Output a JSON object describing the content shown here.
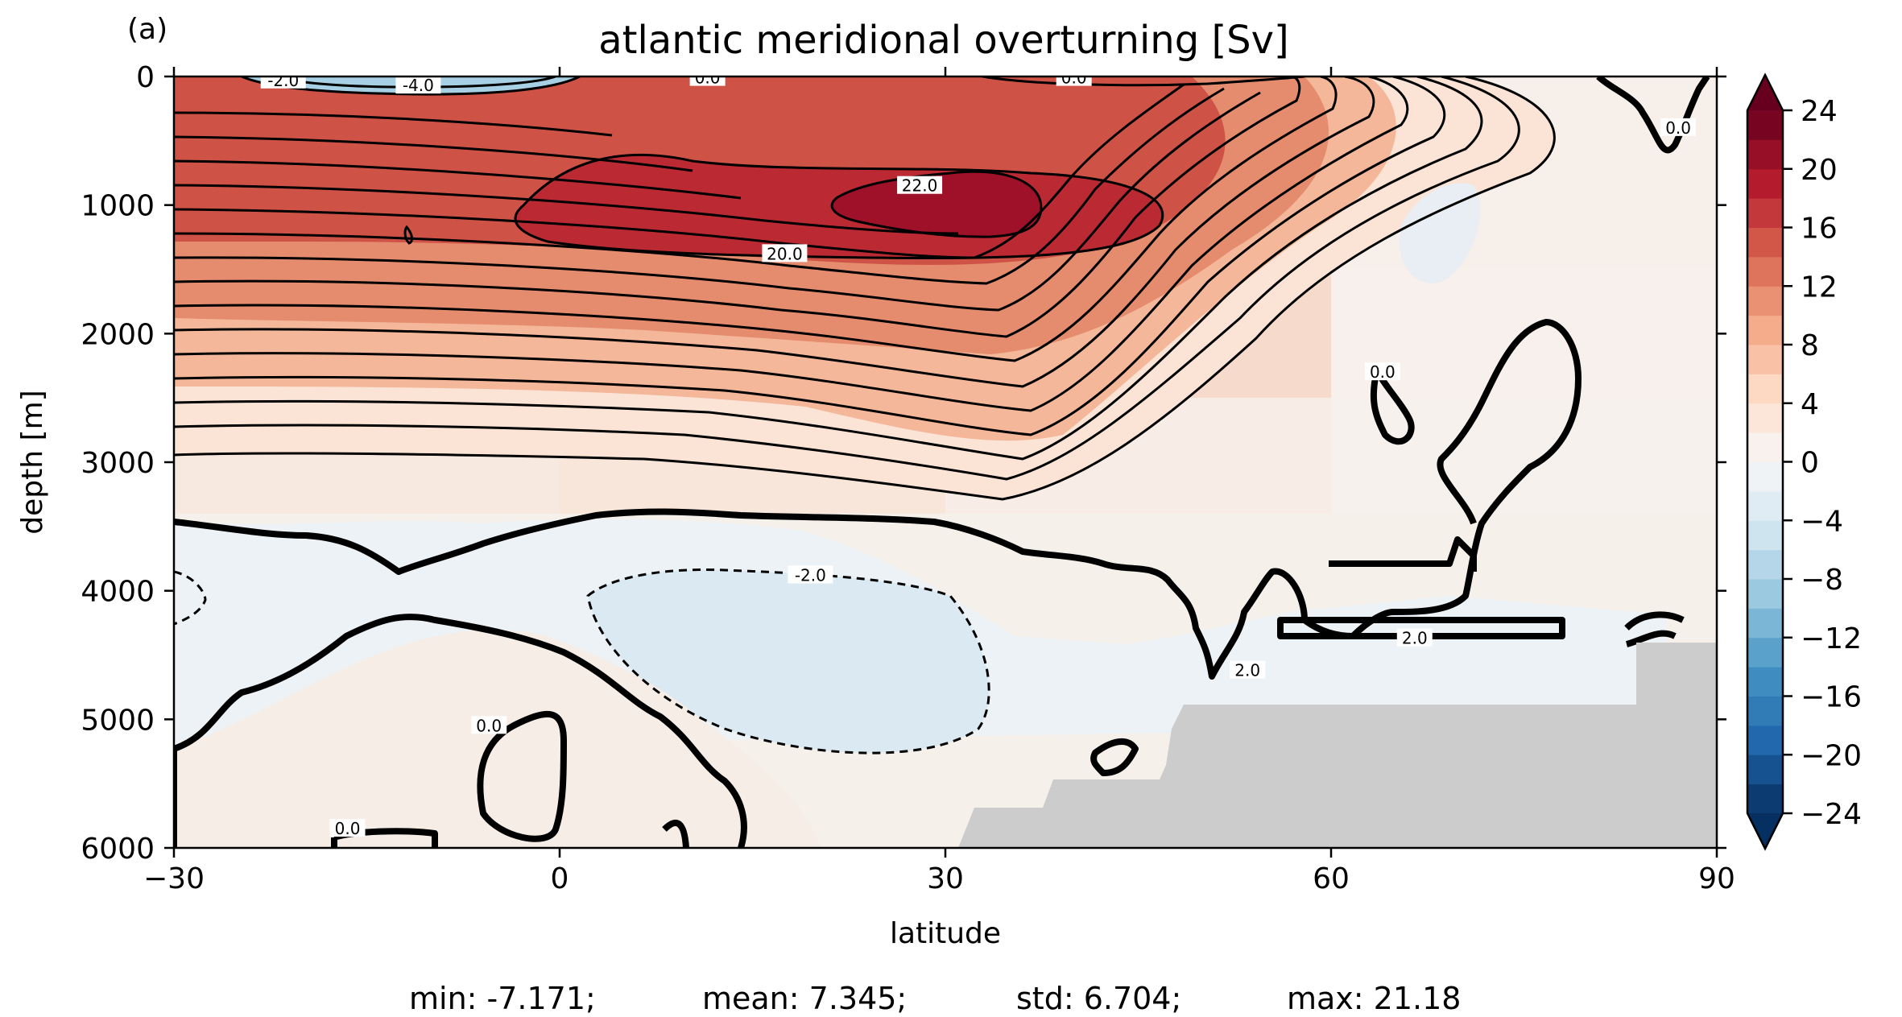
{
  "panel_label": "(a)",
  "stats": {
    "min": "min: -7.171;",
    "mean": "mean: 7.345;",
    "std": "std: 6.704;",
    "max": "max: 21.18"
  },
  "chart_data": {
    "type": "heatmap",
    "title": "atlantic meridional overturning [Sv]",
    "xlabel": "latitude",
    "ylabel": "depth [m]",
    "xlim": [
      -30,
      90
    ],
    "ylim": [
      6000,
      0
    ],
    "x_ticks": [
      -30,
      0,
      30,
      60,
      90
    ],
    "x_tick_labels": [
      "−30",
      "0",
      "30",
      "60",
      "90"
    ],
    "y_ticks": [
      0,
      1000,
      2000,
      3000,
      4000,
      5000,
      6000
    ],
    "y_tick_labels": [
      "0",
      "1000",
      "2000",
      "3000",
      "4000",
      "5000",
      "6000"
    ],
    "colorbar": {
      "min": -24,
      "max": 24,
      "step": 2,
      "extend": "both",
      "ticks": [
        24,
        20,
        16,
        12,
        8,
        4,
        0,
        -4,
        -8,
        -12,
        -16,
        -20,
        -24
      ],
      "tick_labels": [
        "24",
        "20",
        "16",
        "12",
        "8",
        "4",
        "0",
        "−4",
        "−8",
        "−12",
        "−16",
        "−20",
        "−24"
      ],
      "colormap": "RdBu_r"
    },
    "land_color": "#cccccc",
    "contour_labels": [
      {
        "text": "-2.0",
        "lat": -21.5,
        "depth": 30
      },
      {
        "text": "-4.0",
        "lat": -11,
        "depth": 70
      },
      {
        "text": "0.0",
        "lat": 11.5,
        "depth": 10
      },
      {
        "text": "0.0",
        "lat": 40,
        "depth": 10
      },
      {
        "text": "22.0",
        "lat": 28,
        "depth": 850
      },
      {
        "text": "20.0",
        "lat": 17.5,
        "depth": 1380
      },
      {
        "text": "0.0",
        "lat": 87,
        "depth": 400
      },
      {
        "text": "0.0",
        "lat": 64,
        "depth": 2300
      },
      {
        "text": "-2.0",
        "lat": 19.5,
        "depth": 3880
      },
      {
        "text": "2.0",
        "lat": 66.5,
        "depth": 4370
      },
      {
        "text": "2.0",
        "lat": 53.5,
        "depth": 4620
      },
      {
        "text": "0.0",
        "lat": -5.5,
        "depth": 5050
      },
      {
        "text": "0.0",
        "lat": -16.5,
        "depth": 5850
      }
    ],
    "cells": [
      {
        "lat0": -30,
        "lat1": 0,
        "d0": 0,
        "d1": 600,
        "value": 12.5
      },
      {
        "lat0": 0,
        "lat1": 30,
        "d0": 0,
        "d1": 600,
        "value": 14.5
      },
      {
        "lat0": 30,
        "lat1": 60,
        "d0": 0,
        "d1": 600,
        "value": 10.5
      },
      {
        "lat0": 60,
        "lat1": 90,
        "d0": 0,
        "d1": 600,
        "value": 1.5
      },
      {
        "lat0": -30,
        "lat1": 0,
        "d0": 600,
        "d1": 1500,
        "value": 16.5
      },
      {
        "lat0": 0,
        "lat1": 30,
        "d0": 600,
        "d1": 1500,
        "value": 20.5
      },
      {
        "lat0": 30,
        "lat1": 60,
        "d0": 600,
        "d1": 1500,
        "value": 14.5
      },
      {
        "lat0": 60,
        "lat1": 90,
        "d0": 600,
        "d1": 1500,
        "value": 1.5
      },
      {
        "lat0": -30,
        "lat1": 0,
        "d0": 1500,
        "d1": 2500,
        "value": 11.0
      },
      {
        "lat0": 0,
        "lat1": 30,
        "d0": 1500,
        "d1": 2500,
        "value": 12.5
      },
      {
        "lat0": 30,
        "lat1": 60,
        "d0": 1500,
        "d1": 2500,
        "value": 8.5
      },
      {
        "lat0": 60,
        "lat1": 90,
        "d0": 1500,
        "d1": 2500,
        "value": 1.0
      },
      {
        "lat0": -30,
        "lat1": 0,
        "d0": 2500,
        "d1": 3400,
        "value": 4.5
      },
      {
        "lat0": 0,
        "lat1": 30,
        "d0": 2500,
        "d1": 3400,
        "value": 5.5
      },
      {
        "lat0": 30,
        "lat1": 60,
        "d0": 2500,
        "d1": 3400,
        "value": 2.5
      },
      {
        "lat0": 60,
        "lat1": 90,
        "d0": 2500,
        "d1": 3400,
        "value": 0.5
      }
    ]
  }
}
